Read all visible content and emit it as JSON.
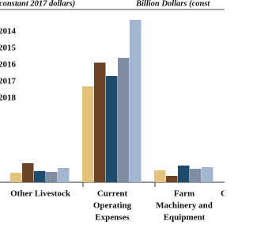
{
  "chart_data": {
    "type": "bar",
    "header_left": "constant 2017 dollars)",
    "header_right": "Billion Dollars (const",
    "categories": [
      [
        "Other Livestock"
      ],
      [
        "Current",
        "Operating",
        "Expenses"
      ],
      [
        "Farm",
        "Machinery and",
        "Equipment"
      ],
      [
        "C"
      ]
    ],
    "series": [
      {
        "name": "2014",
        "color": "#e2c27d",
        "values": [
          12,
          121,
          15,
          null
        ]
      },
      {
        "name": "2015",
        "color": "#6b4428",
        "values": [
          24,
          151,
          8,
          null
        ]
      },
      {
        "name": "2016",
        "color": "#1d4b6b",
        "values": [
          14,
          134,
          21,
          null
        ]
      },
      {
        "name": "2017",
        "color": "#7f8ea5",
        "values": [
          13,
          157,
          17,
          null
        ]
      },
      {
        "name": "2018",
        "color": "#a2b6d1",
        "values": [
          18,
          205,
          19,
          null
        ]
      }
    ],
    "ylim": [
      0,
      210
    ]
  }
}
